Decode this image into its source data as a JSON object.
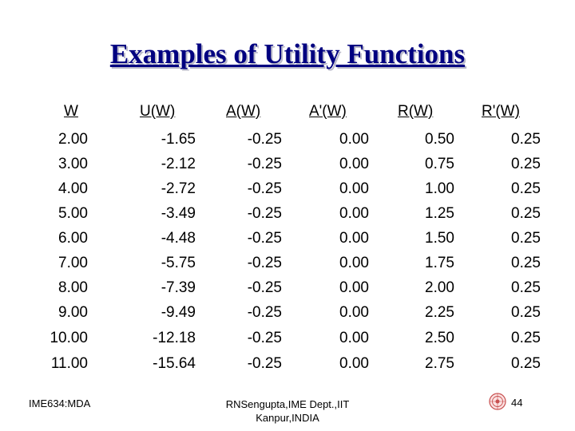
{
  "title": "Examples of Utility Functions",
  "headers": [
    "W",
    "U(W)",
    "A(W)",
    "A'(W)",
    "R(W)",
    "R'(W)"
  ],
  "rows": [
    [
      "2.00",
      "-1.65",
      "-0.25",
      "0.00",
      "0.50",
      "0.25"
    ],
    [
      "3.00",
      "-2.12",
      "-0.25",
      "0.00",
      "0.75",
      "0.25"
    ],
    [
      "4.00",
      "-2.72",
      "-0.25",
      "0.00",
      "1.00",
      "0.25"
    ],
    [
      "5.00",
      "-3.49",
      "-0.25",
      "0.00",
      "1.25",
      "0.25"
    ],
    [
      "6.00",
      "-4.48",
      "-0.25",
      "0.00",
      "1.50",
      "0.25"
    ],
    [
      "7.00",
      "-5.75",
      "-0.25",
      "0.00",
      "1.75",
      "0.25"
    ],
    [
      "8.00",
      "-7.39",
      "-0.25",
      "0.00",
      "2.00",
      "0.25"
    ],
    [
      "9.00",
      "-9.49",
      "-0.25",
      "0.00",
      "2.25",
      "0.25"
    ],
    [
      "10.00",
      "-12.18",
      "-0.25",
      "0.00",
      "2.50",
      "0.25"
    ],
    [
      "11.00",
      "-15.64",
      "-0.25",
      "0.00",
      "2.75",
      "0.25"
    ]
  ],
  "footer": {
    "left": "IME634:MDA",
    "center_line1": "RNSengupta,IME Dept.,IIT",
    "center_line2": "Kanpur,INDIA",
    "page": "44"
  }
}
